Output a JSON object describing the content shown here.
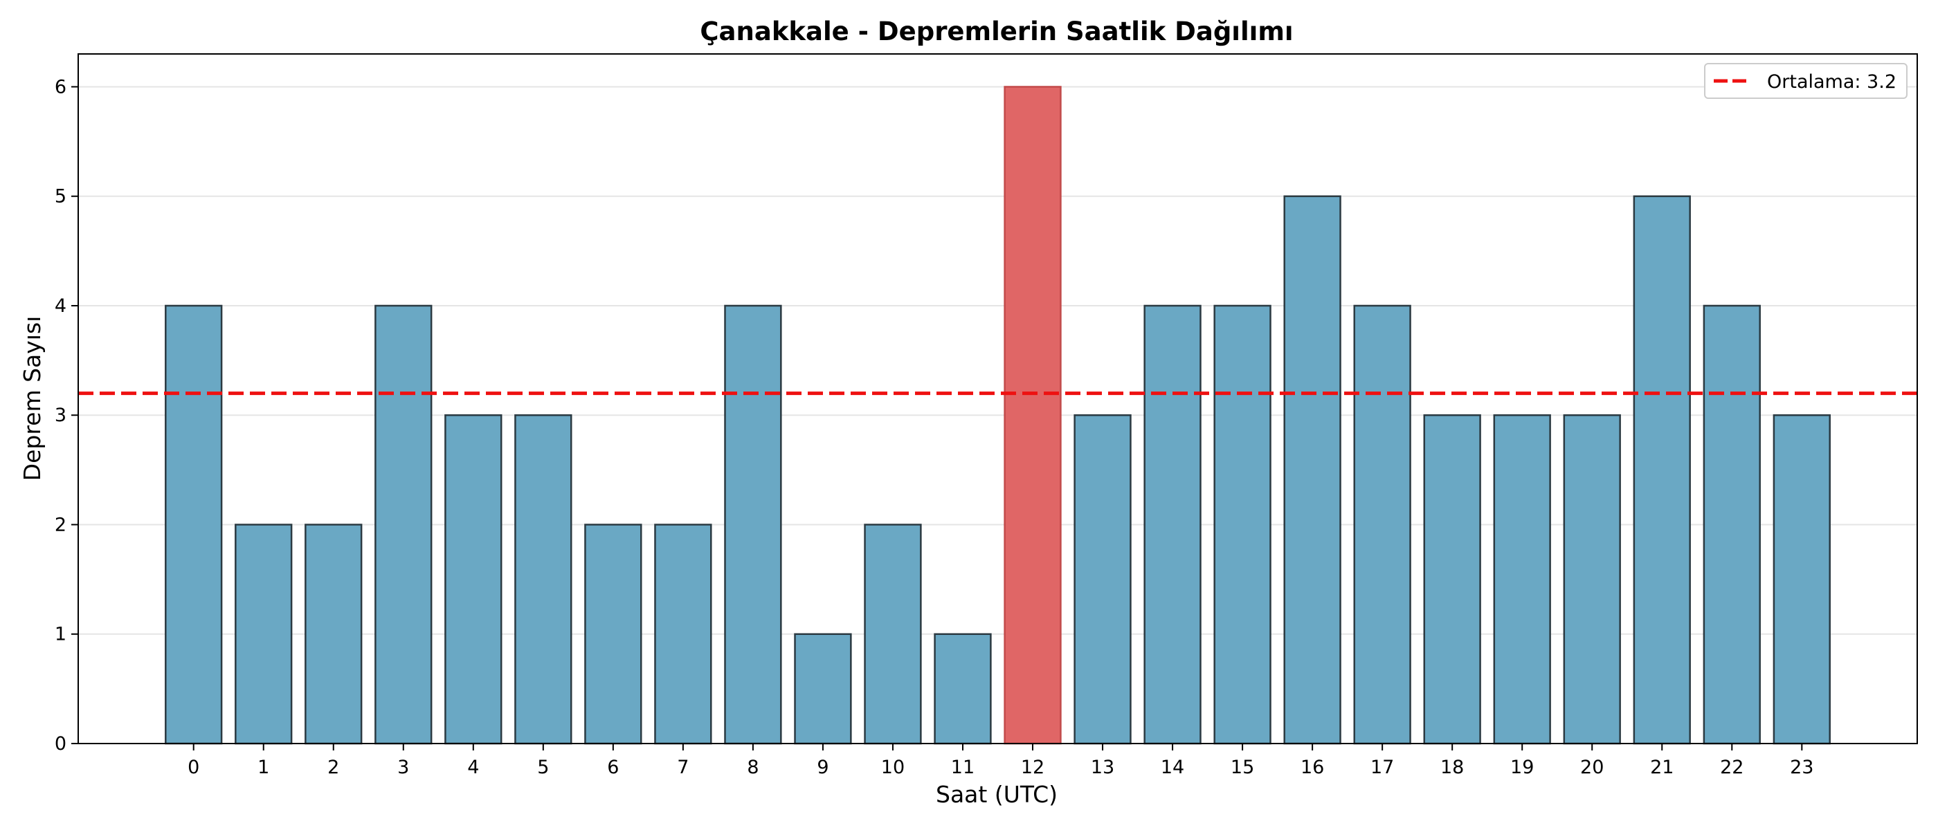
{
  "chart_data": {
    "type": "bar",
    "title": "Çanakkale - Depremlerin Saatlik Dağılımı",
    "xlabel": "Saat (UTC)",
    "ylabel": "Deprem Sayısı",
    "categories": [
      "0",
      "1",
      "2",
      "3",
      "4",
      "5",
      "6",
      "7",
      "8",
      "9",
      "10",
      "11",
      "12",
      "13",
      "14",
      "15",
      "16",
      "17",
      "18",
      "19",
      "20",
      "21",
      "22",
      "23"
    ],
    "values": [
      4,
      2,
      2,
      4,
      3,
      3,
      2,
      2,
      4,
      1,
      2,
      1,
      6,
      3,
      4,
      4,
      5,
      4,
      3,
      3,
      3,
      5,
      4,
      3
    ],
    "highlight_category": "12",
    "yticks": [
      "0",
      "1",
      "2",
      "3",
      "4",
      "5",
      "6"
    ],
    "ylim": [
      0,
      6.3
    ],
    "xlim": [
      -1.65,
      24.65
    ],
    "mean_line": {
      "value": 3.2,
      "label": "Ortalama: 3.2"
    },
    "legend_position": "top-right",
    "grid": "y-only",
    "colors": {
      "bar": "#6aa8c4",
      "highlight": "#e06666",
      "bar_edge": "#2b3a42",
      "mean_line": "#ee1111",
      "grid": "#e5e5e5"
    }
  }
}
